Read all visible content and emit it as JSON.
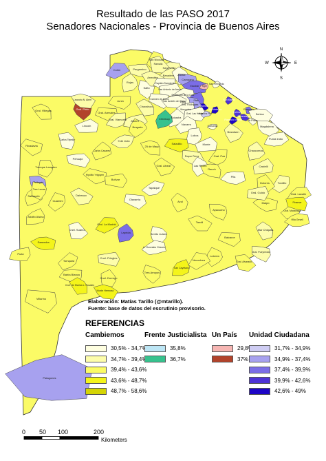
{
  "title": {
    "line1": "Resultado de las PASO 2017",
    "line2": "Senadores Nacionales - Provincia de Buenos Aires"
  },
  "credits": {
    "line1": "Elaboración: Matías Tarillo (@mtarillo).",
    "line2": "Fuente: base de datos del escrutinio provisorio."
  },
  "compass": {
    "n": "N",
    "s": "S",
    "e": "E",
    "w": "W"
  },
  "legend": {
    "title": "REFERENCIAS",
    "groups": [
      {
        "name": "Cambiemos",
        "items": [
          {
            "label": "30,5% - 34,7%",
            "color": "#fefee0"
          },
          {
            "label": "34,7% - 39,4%",
            "color": "#fdfdaa"
          },
          {
            "label": "39,4% - 43,6%",
            "color": "#fbfb66"
          },
          {
            "label": "43,6% - 48,7%",
            "color": "#f4f41a"
          },
          {
            "label": "48,7% - 58,6%",
            "color": "#d4d405"
          }
        ]
      },
      {
        "name": "Frente Justicialista",
        "items": [
          {
            "label": "35,8%",
            "color": "#bde6f5"
          },
          {
            "label": "36,7%",
            "color": "#37c28e"
          }
        ]
      },
      {
        "name": "Un País",
        "items": [
          {
            "label": "29,8%",
            "color": "#f6b6b3"
          },
          {
            "label": "37%",
            "color": "#b2432b"
          }
        ]
      },
      {
        "name": "Unidad Ciudadana",
        "items": [
          {
            "label": "31,7% - 34,9%",
            "color": "#cfcdf3"
          },
          {
            "label": "34,9% - 37,4%",
            "color": "#a7a1ef"
          },
          {
            "label": "37,4% - 39,9%",
            "color": "#7b6de6"
          },
          {
            "label": "39,9% - 42,6%",
            "color": "#4d32d6"
          },
          {
            "label": "42,6% - 49%",
            "color": "#1d05c6"
          }
        ]
      }
    ]
  },
  "scale": {
    "ticks": [
      "0",
      "50",
      "100",
      "200"
    ],
    "unit": "Kilometers"
  },
  "districts": [
    {
      "name": "Pergamino",
      "color": "#fdfdaa"
    },
    {
      "name": "San Pedro",
      "color": "#fdfdaa"
    },
    {
      "name": "Baradero",
      "color": "#fdfdaa"
    },
    {
      "name": "San Nicolás",
      "color": "#fbfb66"
    },
    {
      "name": "Ramallo",
      "color": "#fdfdaa"
    },
    {
      "name": "Colón",
      "color": "#a7a1ef"
    },
    {
      "name": "Rojas",
      "color": "#fdfdaa"
    },
    {
      "name": "Salto",
      "color": "#fefee0"
    },
    {
      "name": "Arrecifes",
      "color": "#fdfdaa"
    },
    {
      "name": "Capitán Sarmiento",
      "color": "#fefee0"
    },
    {
      "name": "Zárate",
      "color": "#fefee0"
    },
    {
      "name": "Campana",
      "color": "#a7a1ef"
    },
    {
      "name": "Escobar",
      "color": "#7b6de6"
    },
    {
      "name": "Tigre",
      "color": "#f6b6b3"
    },
    {
      "name": "San Fernando",
      "color": "#fefee0"
    },
    {
      "name": "San Antonio de Areco",
      "color": "#fefee0"
    },
    {
      "name": "Exaltación de la Cruz",
      "color": "#fefee0"
    },
    {
      "name": "Pilar",
      "color": "#7b6de6"
    },
    {
      "name": "San Martín",
      "color": "#4d32d6"
    },
    {
      "name": "Moreno",
      "color": "#1d05c6"
    },
    {
      "name": "Gral. Rodríguez",
      "color": "#a7a1ef"
    },
    {
      "name": "Luján",
      "color": "#fefee0"
    },
    {
      "name": "Gral. Pinto",
      "color": "#b2432b"
    },
    {
      "name": "Leandro N. Alem",
      "color": "#fdfdaa"
    },
    {
      "name": "Junín",
      "color": "#fbfb66"
    },
    {
      "name": "Chacabuco",
      "color": "#fdfdaa"
    },
    {
      "name": "Carmen de Areco",
      "color": "#fefee0"
    },
    {
      "name": "San Andrés de Giles",
      "color": "#fefee0"
    },
    {
      "name": "Mercedes",
      "color": "#fefee0"
    },
    {
      "name": "Suipacha",
      "color": "#fefee0"
    },
    {
      "name": "Gral. Las Heras",
      "color": "#fefee0"
    },
    {
      "name": "Marcos Paz",
      "color": "#cfcdf3"
    },
    {
      "name": "La Matanza",
      "color": "#1d05c6"
    },
    {
      "name": "Quilmes",
      "color": "#4d32d6"
    },
    {
      "name": "Berazategui",
      "color": "#4d32d6"
    },
    {
      "name": "Florencio Varela",
      "color": "#1d05c6"
    },
    {
      "name": "Ensenada",
      "color": "#7b6de6"
    },
    {
      "name": "La Plata",
      "color": "#fefee0"
    },
    {
      "name": "Berisso",
      "color": "#fefee0"
    },
    {
      "name": "Cañuelas",
      "color": "#fefee0"
    },
    {
      "name": "Gral. Villegas",
      "color": "#fbfb66"
    },
    {
      "name": "Gral. Arenales",
      "color": "#fbfb66"
    },
    {
      "name": "Lincoln",
      "color": "#fefee0"
    },
    {
      "name": "Gral. Viamonte",
      "color": "#fdfdaa"
    },
    {
      "name": "Chivilcoy",
      "color": "#37c28e"
    },
    {
      "name": "Alberti",
      "color": "#fdfdaa"
    },
    {
      "name": "Navarro",
      "color": "#fefee0"
    },
    {
      "name": "Lobos",
      "color": "#fefee0"
    },
    {
      "name": "Brandsen",
      "color": "#fdfdaa"
    },
    {
      "name": "Magdalena",
      "color": "#fefee0"
    },
    {
      "name": "Bragado",
      "color": "#fbfb66"
    },
    {
      "name": "Carlos Tejedor",
      "color": "#fefee0"
    },
    {
      "name": "Rivadavia",
      "color": "#fbfb66"
    },
    {
      "name": "Pehuajó",
      "color": "#fefee0"
    },
    {
      "name": "9 de Julio",
      "color": "#fdfdaa"
    },
    {
      "name": "25 de Mayo",
      "color": "#fbfb66"
    },
    {
      "name": "Saladillo",
      "color": "#f4f41a"
    },
    {
      "name": "Monte",
      "color": "#fefee0"
    },
    {
      "name": "Gral. Paz",
      "color": "#fbfb66"
    },
    {
      "name": "Chascomús",
      "color": "#fdfdaa"
    },
    {
      "name": "Punta Indio",
      "color": "#fefee0"
    },
    {
      "name": "Carlos Casares",
      "color": "#fbfb66"
    },
    {
      "name": "Trenque Lauquen",
      "color": "#fbfb66"
    },
    {
      "name": "Gral. Alvear",
      "color": "#fbfb66"
    },
    {
      "name": "Roque Pérez",
      "color": "#fdfdaa"
    },
    {
      "name": "Las Flores",
      "color": "#fefee0"
    },
    {
      "name": "Pellegrini",
      "color": "#a7a1ef"
    },
    {
      "name": "Hipólito Yrigoyen",
      "color": "#fbfb66"
    },
    {
      "name": "Bolívar",
      "color": "#fbfb66"
    },
    {
      "name": "Tapalqué",
      "color": "#fefee0"
    },
    {
      "name": "Rauch",
      "color": "#fbfb66"
    },
    {
      "name": "Pila",
      "color": "#fefee0"
    },
    {
      "name": "Castelli",
      "color": "#fdfdaa"
    },
    {
      "name": "Tordillo",
      "color": "#fdfdaa"
    },
    {
      "name": "Dolores",
      "color": "#fbfb66"
    },
    {
      "name": "Gral. Lavalle",
      "color": "#fbfb66"
    },
    {
      "name": "Salliqueló",
      "color": "#fbfb66"
    },
    {
      "name": "Tres Lomas",
      "color": "#fbfb66"
    },
    {
      "name": "Daireaux",
      "color": "#fdfdaa"
    },
    {
      "name": "Olavarría",
      "color": "#fefee0"
    },
    {
      "name": "Azul",
      "color": "#fbfb66"
    },
    {
      "name": "Ayacucho",
      "color": "#fbfb66"
    },
    {
      "name": "Maipú",
      "color": "#fbfb66"
    },
    {
      "name": "Gral. Guido",
      "color": "#fdfdaa"
    },
    {
      "name": "Gral. Madariaga",
      "color": "#fbfb66"
    },
    {
      "name": "Pinamar",
      "color": "#f4f41a"
    },
    {
      "name": "Villa Gesell",
      "color": "#fbfb66"
    },
    {
      "name": "Adolfo Alsina",
      "color": "#fbfb66"
    },
    {
      "name": "Guaminí",
      "color": "#fbfb66"
    },
    {
      "name": "Cnel. Suárez",
      "color": "#fefee0"
    },
    {
      "name": "Gral. La Madrid",
      "color": "#f4f41a"
    },
    {
      "name": "Laprida",
      "color": "#7b6de6"
    },
    {
      "name": "Benito Juárez",
      "color": "#fefee0"
    },
    {
      "name": "Tandil",
      "color": "#fbfb66"
    },
    {
      "name": "Balcarce",
      "color": "#fbfb66"
    },
    {
      "name": "Mar Chiquita",
      "color": "#fdfdaa"
    },
    {
      "name": "Gral. Pueyrredón",
      "color": "#fdfdaa"
    },
    {
      "name": "Saavedra",
      "color": "#f4f41a"
    },
    {
      "name": "Puán",
      "color": "#fbfb66"
    },
    {
      "name": "Tornquist",
      "color": "#fbfb66"
    },
    {
      "name": "Cnel. Pringles",
      "color": "#fdfdaa"
    },
    {
      "name": "A. Gonzales Chaves",
      "color": "#fefee0"
    },
    {
      "name": "San Cayetano",
      "color": "#f4f41a"
    },
    {
      "name": "Lobería",
      "color": "#fbfb66"
    },
    {
      "name": "Gral. Alvarado",
      "color": "#fbfb66"
    },
    {
      "name": "Necochea",
      "color": "#fbfb66"
    },
    {
      "name": "Cnel. Dorrego",
      "color": "#fbfb66"
    },
    {
      "name": "Tres Arroyos",
      "color": "#fbfb66"
    },
    {
      "name": "Monte Hermoso",
      "color": "#f4f41a"
    },
    {
      "name": "Bahía Blanca",
      "color": "#fbfb66"
    },
    {
      "name": "Cnel. de Marina L. Rosales",
      "color": "#f4f41a"
    },
    {
      "name": "Villarino",
      "color": "#fbfb66"
    },
    {
      "name": "Patagones",
      "color": "#a7a1ef"
    }
  ]
}
